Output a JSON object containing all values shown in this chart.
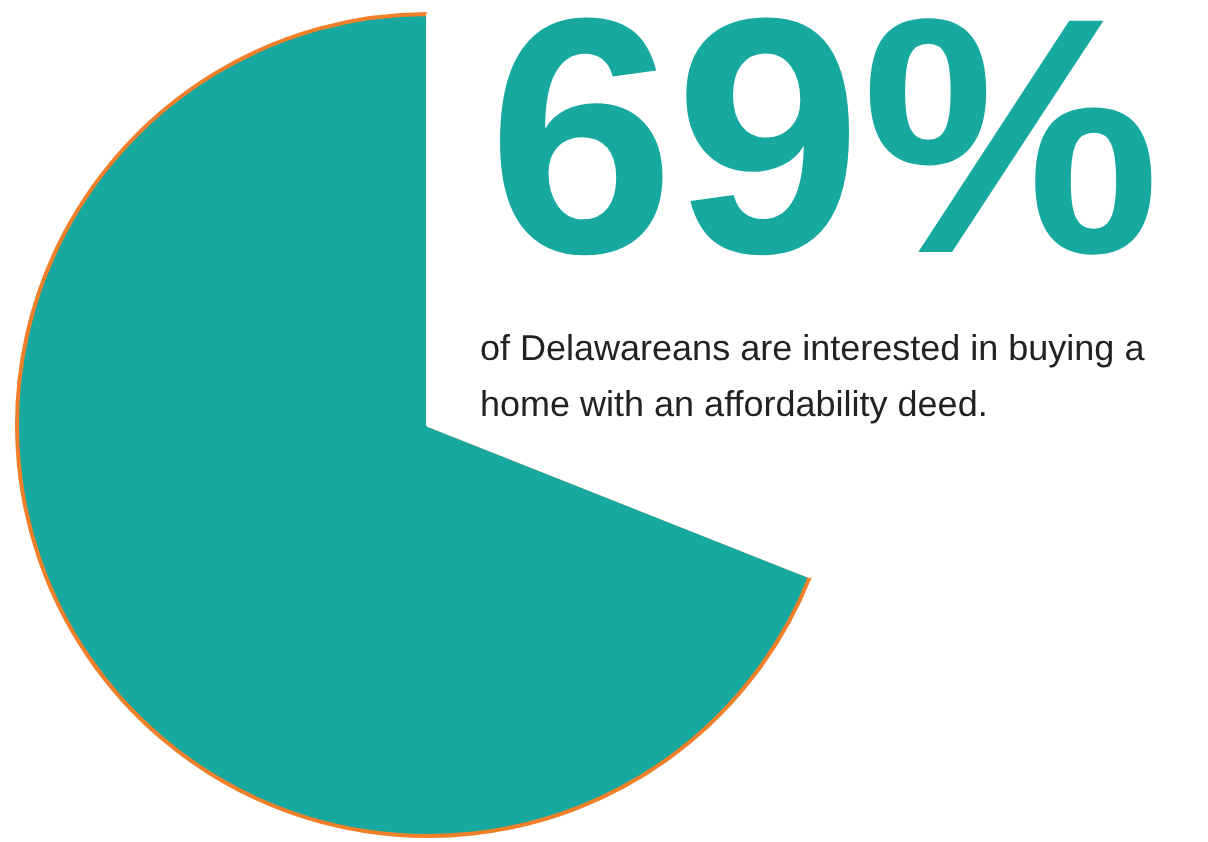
{
  "chart_data": {
    "type": "pie",
    "subtitle": "of Delawareans are interested in buying a home with an affordability deed.",
    "categories": [
      null,
      null
    ],
    "values": [
      69,
      31
    ],
    "colors": [
      "#17a9a0",
      "#ffffff"
    ],
    "value_labels": [
      "69%",
      null
    ],
    "legend": false
  }
}
